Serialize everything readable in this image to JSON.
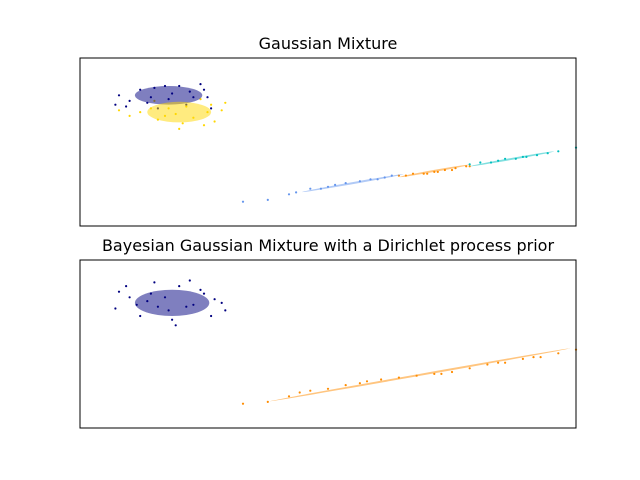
{
  "chart_data": [
    {
      "type": "scatter",
      "title": "Gaussian Mixture",
      "xlabel": "",
      "ylabel": "",
      "xlim": [
        -9,
        5
      ],
      "ylim": [
        -3,
        6
      ],
      "ticks_visible": false,
      "grid": false,
      "legend": "none",
      "series": [
        {
          "color": "#000080",
          "points": [
            [
              -7.6,
              3.7
            ],
            [
              -7.9,
              4.0
            ],
            [
              -6.9,
              4.4
            ],
            [
              -6.2,
              4.5
            ],
            [
              -5.5,
              4.3
            ],
            [
              -5.8,
              3.9
            ],
            [
              -6.5,
              3.8
            ],
            [
              -7.1,
              3.6
            ],
            [
              -6.0,
              3.5
            ],
            [
              -5.4,
              3.9
            ],
            [
              -8.0,
              3.5
            ],
            [
              -5.3,
              3.3
            ],
            [
              -6.4,
              4.1
            ],
            [
              -7.3,
              4.3
            ],
            [
              -5.6,
              4.6
            ],
            [
              -6.8,
              3.3
            ],
            [
              -7.7,
              3.4
            ],
            [
              -5.9,
              4.2
            ],
            [
              -6.6,
              4.5
            ],
            [
              -7.0,
              3.9
            ]
          ],
          "ellipse": {
            "center": [
              -6.5,
              4.0
            ],
            "width": 1.9,
            "height": 1.0,
            "angle": 0
          }
        },
        {
          "color": "#ffd700",
          "points": [
            [
              -6.3,
              3.0
            ],
            [
              -6.8,
              2.7
            ],
            [
              -5.8,
              2.8
            ],
            [
              -6.5,
              3.3
            ],
            [
              -5.3,
              3.5
            ],
            [
              -5.0,
              3.2
            ],
            [
              -7.3,
              3.1
            ],
            [
              -6.1,
              2.5
            ],
            [
              -6.9,
              3.7
            ],
            [
              -5.6,
              3.8
            ],
            [
              -7.6,
              2.9
            ],
            [
              -5.2,
              2.6
            ],
            [
              -6.0,
              3.4
            ],
            [
              -6.6,
              2.9
            ],
            [
              -5.4,
              3.1
            ],
            [
              -7.0,
              3.3
            ],
            [
              -4.9,
              3.6
            ],
            [
              -6.2,
              2.2
            ],
            [
              -7.9,
              3.2
            ],
            [
              -5.5,
              2.4
            ]
          ],
          "ellipse": {
            "center": [
              -6.2,
              3.1
            ],
            "width": 1.8,
            "height": 1.1,
            "angle": 0
          }
        },
        {
          "color": "#6495ed",
          "points": [
            [
              -4.4,
              -1.7
            ],
            [
              -3.7,
              -1.6
            ],
            [
              -3.1,
              -1.3
            ],
            [
              -2.5,
              -1.0
            ],
            [
              -2.0,
              -0.9
            ],
            [
              -1.5,
              -0.7
            ],
            [
              -1.1,
              -0.6
            ],
            [
              -0.8,
              -0.5
            ],
            [
              -0.4,
              -0.4
            ],
            [
              -0.2,
              -0.3
            ],
            [
              -2.9,
              -1.2
            ],
            [
              -1.8,
              -0.8
            ],
            [
              -0.6,
              -0.5
            ],
            [
              -2.2,
              -1.0
            ]
          ],
          "ellipse": {
            "center": [
              -1.3,
              -0.7
            ],
            "width": 2.9,
            "height": 0.08,
            "angle": 10
          }
        },
        {
          "color": "#ff8c00",
          "points": [
            [
              0.0,
              -0.3
            ],
            [
              0.4,
              -0.2
            ],
            [
              0.7,
              -0.2
            ],
            [
              1.0,
              -0.1
            ],
            [
              1.3,
              0.0
            ],
            [
              1.6,
              0.1
            ],
            [
              1.9,
              0.2
            ],
            [
              2.0,
              0.2
            ],
            [
              0.2,
              -0.3
            ],
            [
              1.1,
              -0.1
            ],
            [
              1.5,
              0.0
            ],
            [
              0.8,
              -0.2
            ]
          ],
          "ellipse": {
            "center": [
              1.0,
              -0.05
            ],
            "width": 2.0,
            "height": 0.08,
            "angle": 10
          }
        },
        {
          "color": "#00bfbf",
          "points": [
            [
              2.0,
              0.3
            ],
            [
              2.3,
              0.4
            ],
            [
              2.6,
              0.4
            ],
            [
              3.0,
              0.6
            ],
            [
              3.3,
              0.6
            ],
            [
              3.6,
              0.7
            ],
            [
              3.9,
              0.8
            ],
            [
              4.2,
              0.9
            ],
            [
              4.5,
              1.0
            ],
            [
              5.0,
              1.2
            ],
            [
              2.8,
              0.5
            ],
            [
              3.5,
              0.7
            ]
          ],
          "ellipse": {
            "center": [
              3.2,
              0.6
            ],
            "width": 2.4,
            "height": 0.08,
            "angle": 10
          }
        }
      ]
    },
    {
      "type": "scatter",
      "title": "Bayesian Gaussian Mixture with a Dirichlet process prior",
      "xlabel": "",
      "ylabel": "",
      "xlim": [
        -9,
        5
      ],
      "ylim": [
        -3,
        6
      ],
      "ticks_visible": false,
      "grid": false,
      "legend": "none",
      "series": [
        {
          "color": "#000080",
          "points": [
            [
              -7.6,
              4.0
            ],
            [
              -7.9,
              4.3
            ],
            [
              -6.9,
              4.8
            ],
            [
              -6.2,
              4.6
            ],
            [
              -5.5,
              4.2
            ],
            [
              -5.8,
              3.6
            ],
            [
              -6.5,
              3.3
            ],
            [
              -7.1,
              3.8
            ],
            [
              -6.0,
              3.5
            ],
            [
              -5.3,
              3.0
            ],
            [
              -8.0,
              3.4
            ],
            [
              -5.0,
              3.7
            ],
            [
              -6.4,
              2.8
            ],
            [
              -7.3,
              3.0
            ],
            [
              -5.6,
              4.4
            ],
            [
              -6.8,
              3.5
            ],
            [
              -7.7,
              4.6
            ],
            [
              -5.9,
              4.9
            ],
            [
              -6.6,
              4.0
            ],
            [
              -7.0,
              4.2
            ],
            [
              -4.9,
              3.3
            ],
            [
              -6.3,
              2.5
            ],
            [
              -5.2,
              3.9
            ],
            [
              -7.4,
              3.6
            ]
          ],
          "ellipse": {
            "center": [
              -6.4,
              3.7
            ],
            "width": 2.1,
            "height": 1.4,
            "angle": 0
          }
        },
        {
          "color": "#ff8c00",
          "points": [
            [
              -4.4,
              -1.7
            ],
            [
              -3.7,
              -1.6
            ],
            [
              -3.1,
              -1.3
            ],
            [
              -2.5,
              -1.0
            ],
            [
              -2.0,
              -0.9
            ],
            [
              -1.5,
              -0.7
            ],
            [
              -1.1,
              -0.6
            ],
            [
              -0.5,
              -0.4
            ],
            [
              0.0,
              -0.3
            ],
            [
              0.5,
              -0.2
            ],
            [
              1.0,
              -0.1
            ],
            [
              1.5,
              0.0
            ],
            [
              2.0,
              0.2
            ],
            [
              2.5,
              0.4
            ],
            [
              3.0,
              0.5
            ],
            [
              3.5,
              0.7
            ],
            [
              4.0,
              0.8
            ],
            [
              4.5,
              1.0
            ],
            [
              5.0,
              1.2
            ],
            [
              -2.8,
              -1.1
            ],
            [
              -0.9,
              -0.5
            ],
            [
              1.2,
              -0.1
            ],
            [
              2.8,
              0.5
            ],
            [
              3.8,
              0.8
            ]
          ],
          "ellipse": {
            "center": [
              0.6,
              -0.15
            ],
            "width": 8.6,
            "height": 0.08,
            "angle": 10
          }
        }
      ]
    }
  ]
}
